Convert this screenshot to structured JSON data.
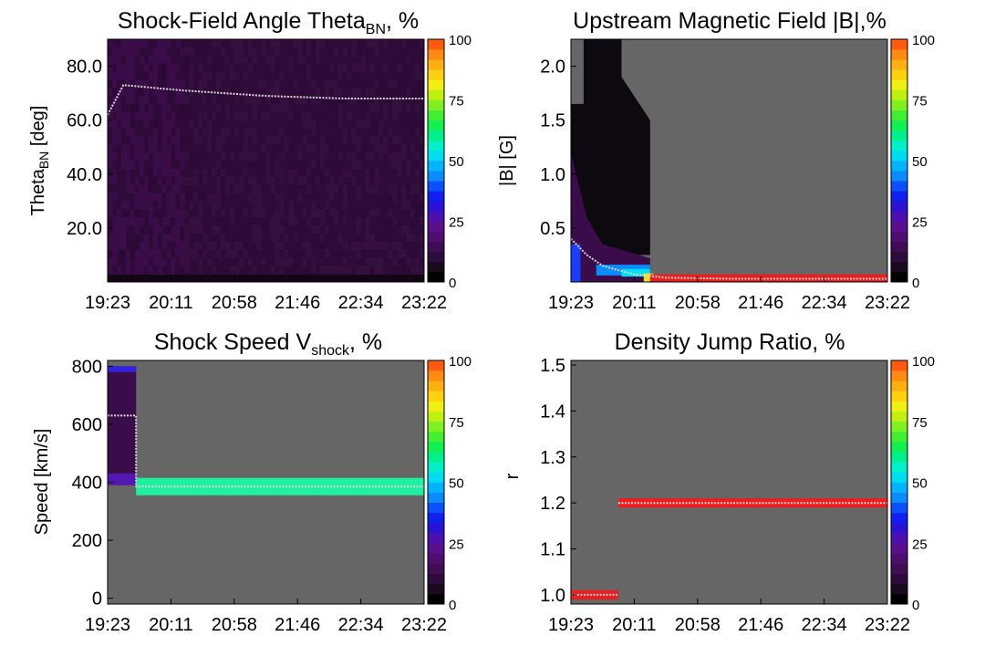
{
  "figure": {
    "colorbar_ticks": [
      "0",
      "25",
      "50",
      "75",
      "100"
    ],
    "colorbar_colors": [
      "#000000",
      "#1a0a1f",
      "#2d0b3c",
      "#3f0c55",
      "#4f0d70",
      "#5a0f8c",
      "#4a10b0",
      "#2a12d4",
      "#1020f0",
      "#0a50ff",
      "#0a8cff",
      "#00b4ff",
      "#00dcf0",
      "#00f0c8",
      "#00f08c",
      "#10f050",
      "#40f030",
      "#80f020",
      "#c0f010",
      "#f0f010",
      "#ffd010",
      "#ffb010",
      "#ff8a10",
      "#ff5a10"
    ],
    "background_gray": "#666666",
    "trace_color": "#d8d8d8"
  },
  "chart_data": [
    {
      "type": "heatmap",
      "title_main": "Shock-Field Angle Theta",
      "title_sub": "BN",
      "title_suffix": ", %",
      "ylabel_main": "Theta",
      "ylabel_sub": "BN",
      "ylabel_suffix": " [deg]",
      "x_ticks": [
        "19:23",
        "20:11",
        "20:58",
        "21:46",
        "22:34",
        "23:22"
      ],
      "y_ticks": [
        {
          "value": 20,
          "label": "20.0"
        },
        {
          "value": 40,
          "label": "40.0"
        },
        {
          "value": 60,
          "label": "60.0"
        },
        {
          "value": 80,
          "label": "80.0"
        }
      ],
      "ylim": [
        0,
        90
      ],
      "background": "#2e0a38",
      "median_trace": [
        [
          0.0,
          62
        ],
        [
          0.05,
          73
        ],
        [
          0.24,
          71
        ],
        [
          0.5,
          69
        ],
        [
          0.75,
          68
        ],
        [
          1.0,
          68
        ]
      ]
    },
    {
      "type": "heatmap",
      "title_main": "Upstream Magnetic Field |B|,%",
      "ylabel_main": "|B| [G]",
      "x_ticks": [
        "19:23",
        "20:11",
        "20:58",
        "21:46",
        "22:34",
        "23:22"
      ],
      "y_ticks": [
        {
          "value": 0.5,
          "label": "0.5"
        },
        {
          "value": 1.0,
          "label": "1.0"
        },
        {
          "value": 1.5,
          "label": "1.5"
        },
        {
          "value": 2.0,
          "label": "2.0"
        }
      ],
      "ylim": [
        0,
        2.25
      ],
      "median_trace": [
        [
          0.0,
          0.4
        ],
        [
          0.05,
          0.25
        ],
        [
          0.1,
          0.15
        ],
        [
          0.2,
          0.07
        ],
        [
          0.3,
          0.04
        ],
        [
          0.5,
          0.03
        ],
        [
          1.0,
          0.03
        ]
      ],
      "band": {
        "x_start": 0.25,
        "x_end": 1.0,
        "y_low": 0.0,
        "y_high": 0.07,
        "color": "#ee1c1c"
      }
    },
    {
      "type": "heatmap",
      "title_main": "Shock Speed V",
      "title_sub": "shock",
      "title_suffix": ", %",
      "ylabel_main": "Speed [km/s]",
      "x_ticks": [
        "19:23",
        "20:11",
        "20:58",
        "21:46",
        "22:34",
        "23:22"
      ],
      "y_ticks": [
        {
          "value": 0,
          "label": "0"
        },
        {
          "value": 200,
          "label": "200"
        },
        {
          "value": 400,
          "label": "400"
        },
        {
          "value": 600,
          "label": "600"
        },
        {
          "value": 800,
          "label": "800"
        }
      ],
      "ylim": [
        -20,
        820
      ],
      "median_trace": [
        [
          0.0,
          630
        ],
        [
          0.09,
          630
        ],
        [
          0.09,
          385
        ],
        [
          1.0,
          385
        ]
      ],
      "band": {
        "x_start": 0.09,
        "x_end": 1.0,
        "y_low": 355,
        "y_high": 415,
        "color": "#1ef0a0"
      }
    },
    {
      "type": "heatmap",
      "title_main": "Density Jump Ratio, %",
      "ylabel_main": "r",
      "x_ticks": [
        "19:23",
        "20:11",
        "20:58",
        "21:46",
        "22:34",
        "23:22"
      ],
      "y_ticks": [
        {
          "value": 1.0,
          "label": "1.0"
        },
        {
          "value": 1.1,
          "label": "1.1"
        },
        {
          "value": 1.2,
          "label": "1.2"
        },
        {
          "value": 1.3,
          "label": "1.3"
        },
        {
          "value": 1.4,
          "label": "1.4"
        },
        {
          "value": 1.5,
          "label": "1.5"
        }
      ],
      "ylim": [
        0.98,
        1.51
      ],
      "median_trace": [
        [
          0.0,
          1.0
        ],
        [
          0.15,
          1.0
        ]
      ],
      "median_trace_2": [
        [
          0.15,
          1.2
        ],
        [
          1.0,
          1.2
        ]
      ],
      "bands": [
        {
          "x_start": 0.0,
          "x_end": 0.15,
          "y_low": 0.99,
          "y_high": 1.01,
          "color": "#ee1c1c"
        },
        {
          "x_start": 0.15,
          "x_end": 1.0,
          "y_low": 1.19,
          "y_high": 1.21,
          "color": "#ee1c1c"
        }
      ]
    }
  ]
}
